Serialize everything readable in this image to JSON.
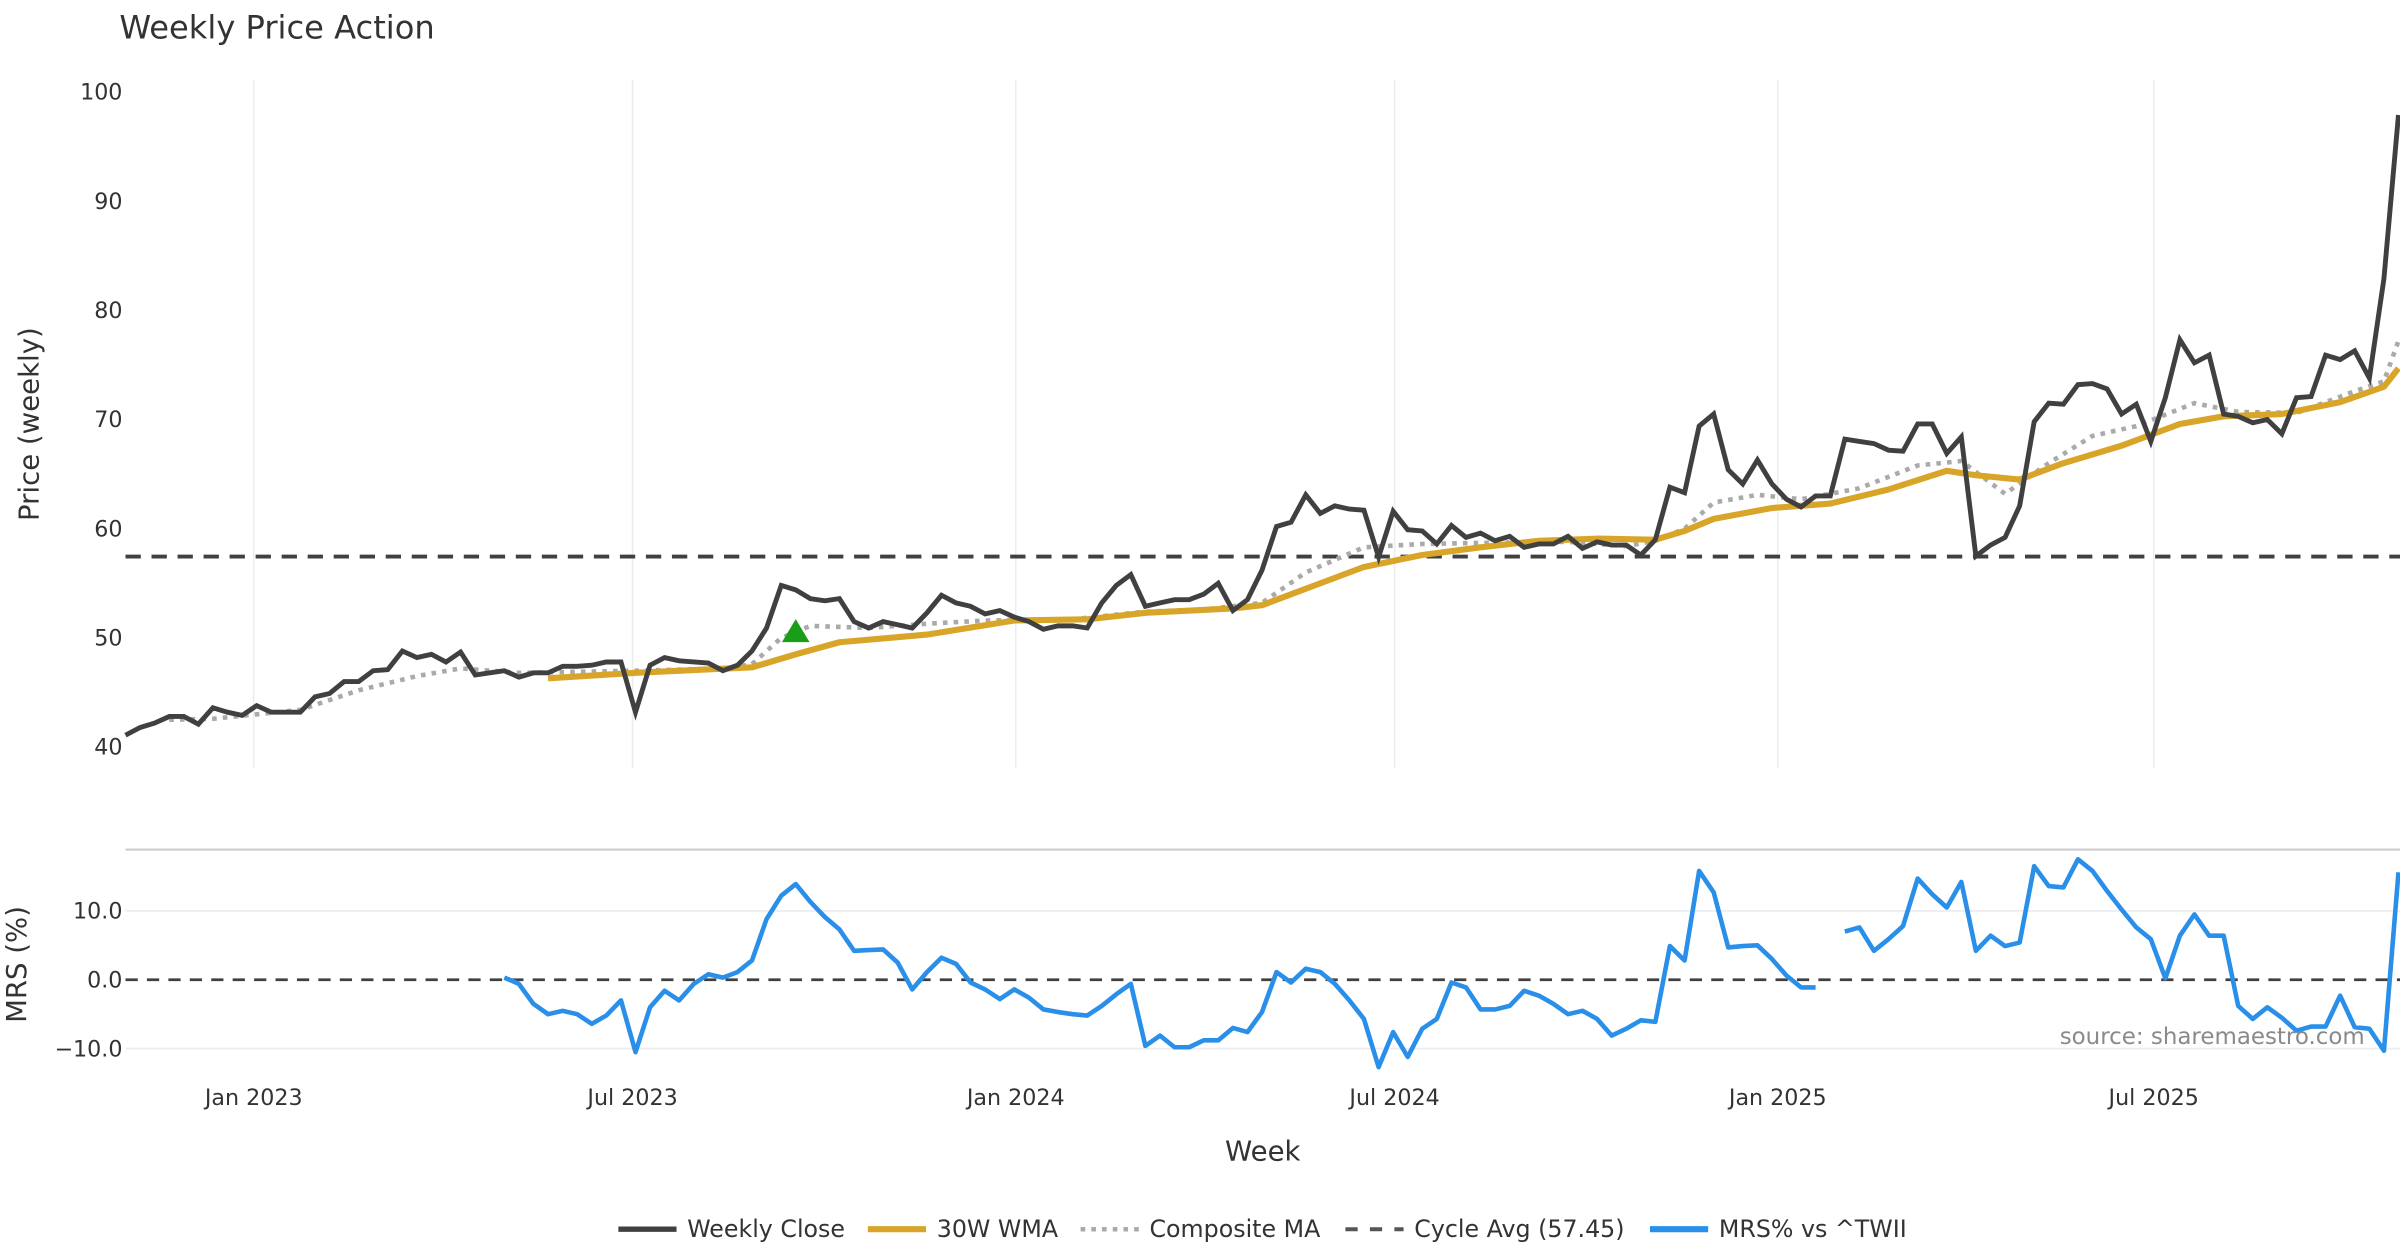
{
  "chart_data": [
    {
      "type": "line",
      "title": "Weekly Price Action",
      "ylabel": "Price (weekly)",
      "ylim": [
        40,
        100
      ],
      "yticks": [
        "100",
        "90",
        "80",
        "70",
        "60",
        "50",
        "40"
      ],
      "ytick_values": [
        100,
        90,
        80,
        70,
        60,
        50,
        40
      ],
      "x_start": "2022-11-01",
      "x_step": "1 week",
      "grid": "vertical",
      "series": [
        {
          "name": "Weekly Close",
          "color": "#404040",
          "values": [
            41.1,
            41.8,
            42.2,
            42.8,
            42.8,
            42.1,
            43.6,
            43.2,
            42.9,
            43.8,
            43.2,
            43.2,
            43.2,
            44.6,
            44.9,
            46.0,
            46.0,
            47.0,
            47.1,
            48.8,
            48.2,
            48.5,
            47.8,
            48.7,
            46.6,
            46.8,
            47.0,
            46.4,
            46.8,
            46.8,
            47.4,
            47.4,
            47.5,
            47.8,
            47.8,
            43.2,
            47.5,
            48.2,
            47.9,
            47.8,
            47.7,
            47.0,
            47.5,
            48.8,
            50.9,
            54.8,
            54.4,
            53.6,
            53.4,
            53.6,
            51.5,
            50.9,
            51.5,
            51.2,
            50.9,
            52.3,
            53.9,
            53.2,
            52.9,
            52.2,
            52.5,
            51.9,
            51.5,
            50.8,
            51.1,
            51.1,
            50.9,
            53.2,
            54.8,
            55.8,
            52.9,
            53.2,
            53.5,
            53.5,
            54.0,
            55.0,
            52.5,
            53.5,
            56.2,
            60.2,
            60.6,
            63.1,
            61.4,
            62.1,
            61.8,
            61.7,
            57.4,
            61.6,
            59.9,
            59.8,
            58.6,
            60.3,
            59.2,
            59.6,
            58.9,
            59.3,
            58.3,
            58.6,
            58.6,
            59.3,
            58.2,
            58.8,
            58.5,
            58.5,
            57.6,
            59.0,
            63.8,
            63.3,
            69.4,
            70.5,
            65.4,
            64.1,
            66.3,
            64.1,
            62.7,
            62.0,
            63.0,
            63.0,
            68.2,
            68.0,
            67.8,
            67.2,
            67.1,
            69.6,
            69.6,
            66.9,
            68.4,
            57.5,
            58.5,
            59.2,
            62.1,
            69.8,
            71.5,
            71.4,
            73.2,
            73.3,
            72.8,
            70.5,
            71.4,
            68.0,
            72.0,
            77.3,
            75.2,
            75.9,
            70.5,
            70.3,
            69.7,
            70.0,
            68.7,
            72.0,
            72.1,
            75.9,
            75.5,
            76.3,
            73.8,
            82.9,
            97.9
          ]
        },
        {
          "name": "30W WMA",
          "color": "#d9a528",
          "points": [
            [
              29,
              46.3
            ],
            [
              35,
              46.8
            ],
            [
              43,
              47.3
            ],
            [
              46,
              48.5
            ],
            [
              49,
              49.6
            ],
            [
              55,
              50.3
            ],
            [
              61,
              51.6
            ],
            [
              66,
              51.7
            ],
            [
              70,
              52.3
            ],
            [
              76,
              52.7
            ],
            [
              78,
              53.0
            ],
            [
              82,
              55.0
            ],
            [
              85,
              56.5
            ],
            [
              89,
              57.6
            ],
            [
              93,
              58.3
            ],
            [
              97,
              58.9
            ],
            [
              101,
              59.1
            ],
            [
              105,
              59.0
            ],
            [
              107,
              59.8
            ],
            [
              109,
              60.9
            ],
            [
              113,
              61.9
            ],
            [
              117,
              62.3
            ],
            [
              121,
              63.6
            ],
            [
              125,
              65.3
            ],
            [
              127,
              64.9
            ],
            [
              130,
              64.5
            ],
            [
              133,
              66.0
            ],
            [
              137,
              67.6
            ],
            [
              141,
              69.6
            ],
            [
              144,
              70.3
            ],
            [
              148,
              70.5
            ],
            [
              152,
              71.6
            ],
            [
              155,
              73.0
            ],
            [
              156,
              74.7
            ]
          ]
        },
        {
          "name": "Composite MA",
          "color": "#aaaaaa",
          "points": [
            [
              3,
              42.5
            ],
            [
              6,
              42.6
            ],
            [
              12,
              43.4
            ],
            [
              16,
              45.2
            ],
            [
              20,
              46.5
            ],
            [
              23,
              47.2
            ],
            [
              27,
              46.8
            ],
            [
              31,
              46.9
            ],
            [
              35,
              47.0
            ],
            [
              41,
              47.2
            ],
            [
              43,
              47.6
            ],
            [
              45,
              50.0
            ],
            [
              47,
              51.1
            ],
            [
              51,
              50.9
            ],
            [
              55,
              51.3
            ],
            [
              59,
              51.6
            ],
            [
              65,
              51.7
            ],
            [
              70,
              52.4
            ],
            [
              74,
              52.6
            ],
            [
              78,
              53.2
            ],
            [
              81,
              56.0
            ],
            [
              85,
              58.3
            ],
            [
              89,
              58.6
            ],
            [
              93,
              58.7
            ],
            [
              99,
              58.8
            ],
            [
              103,
              58.4
            ],
            [
              105,
              58.9
            ],
            [
              107,
              60.0
            ],
            [
              109,
              62.4
            ],
            [
              112,
              63.1
            ],
            [
              115,
              62.7
            ],
            [
              119,
              63.7
            ],
            [
              123,
              65.8
            ],
            [
              126,
              66.2
            ],
            [
              129,
              63.2
            ],
            [
              132,
              66.0
            ],
            [
              135,
              68.5
            ],
            [
              138,
              69.4
            ],
            [
              142,
              71.5
            ],
            [
              145,
              70.7
            ],
            [
              149,
              70.6
            ],
            [
              153,
              72.6
            ],
            [
              155,
              73.5
            ],
            [
              156,
              77.2
            ]
          ]
        },
        {
          "name": "Cycle Avg (57.45)",
          "color": "#404040",
          "constant": 57.45
        }
      ],
      "markers": [
        {
          "index": 46,
          "value": 50.6,
          "shape": "triangle-up",
          "color": "#1a9e1a"
        }
      ]
    },
    {
      "type": "line",
      "ylabel": "MRS (%)",
      "xlabel": "Week",
      "ylim": [
        -14,
        19
      ],
      "yticks": [
        "10.0",
        "0.0",
        "−10.0"
      ],
      "ytick_values": [
        10,
        0,
        -10
      ],
      "xticks": [
        "Jan 2023",
        "Jul 2023",
        "Jan 2024",
        "Jul 2024",
        "Jan 2025",
        "Jul 2025"
      ],
      "xtick_weeks": [
        8.8,
        34.8,
        61.1,
        87.1,
        113.4,
        139.2
      ],
      "series": [
        {
          "name": "MRS% vs ^TWII",
          "color": "#2a8fe8",
          "values": [
            null,
            null,
            null,
            null,
            null,
            null,
            null,
            null,
            null,
            null,
            null,
            null,
            null,
            null,
            null,
            null,
            null,
            null,
            null,
            null,
            null,
            null,
            null,
            null,
            null,
            null,
            0.3,
            -0.6,
            -3.5,
            -5,
            -4.5,
            -5,
            -6.4,
            -5.2,
            -3,
            -10.5,
            -4,
            -1.6,
            -3,
            -0.6,
            0.8,
            0.3,
            1.1,
            2.8,
            8.8,
            12.2,
            13.9,
            11.3,
            9.1,
            7.3,
            4.2,
            4.3,
            4.4,
            2.5,
            -1.4,
            1.1,
            3.2,
            2.3,
            -0.4,
            -1.4,
            -2.8,
            -1.4,
            -2.6,
            -4.3,
            -4.7,
            -5,
            -5.2,
            -3.8,
            -2.1,
            -0.6,
            -9.6,
            -8.1,
            -9.8,
            -9.8,
            -8.8,
            -8.8,
            -7,
            -7.6,
            -4.7,
            1.1,
            -0.4,
            1.6,
            1.1,
            -0.6,
            -3,
            -5.7,
            -12.7,
            -7.6,
            -11.2,
            -7.1,
            -5.7,
            -0.4,
            -1.1,
            -4.3,
            -4.3,
            -3.8,
            -1.6,
            -2.3,
            -3.5,
            -5,
            -4.5,
            -5.7,
            -8.1,
            -7.1,
            -5.9,
            -6.1,
            4.9,
            2.8,
            15.8,
            12.7,
            4.7,
            4.9,
            5,
            3,
            0.6,
            -1.1,
            -1.1,
            null,
            7,
            7.6,
            4.2,
            5.9,
            7.8,
            14.7,
            12.4,
            10.5,
            14.2,
            4.2,
            6.4,
            4.9,
            5.4,
            16.5,
            13.6,
            13.4,
            17.5,
            15.8,
            12.9,
            10.2,
            7.6,
            5.9,
            0.2,
            6.4,
            9.5,
            6.4,
            6.4,
            -3.8,
            -5.7,
            -4,
            -5.5,
            -7.4,
            -6.8,
            -6.8,
            -2.3,
            -6.9,
            -7.1,
            -10.3,
            15.6
          ]
        }
      ],
      "annotation": "source: sharemaestro.com"
    }
  ],
  "legend": {
    "placement": "bottom-center",
    "items": [
      "Weekly Close",
      "30W WMA",
      "Composite MA",
      "Cycle Avg (57.45)",
      "MRS% vs ^TWII"
    ]
  }
}
